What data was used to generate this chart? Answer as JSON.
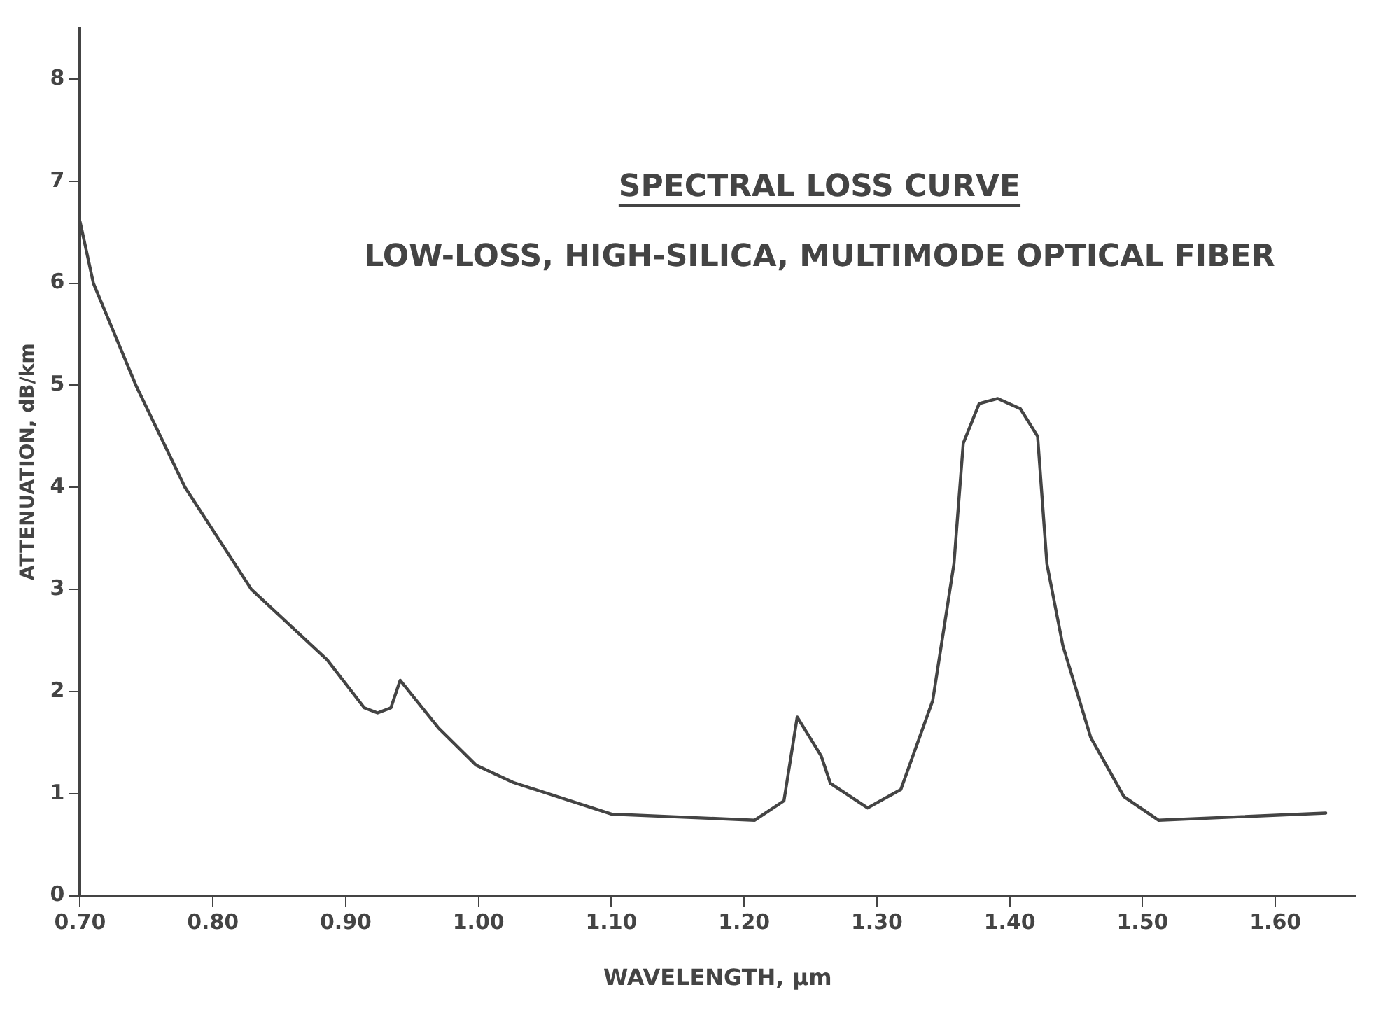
{
  "chart_data": {
    "type": "line",
    "title": "SPECTRAL LOSS CURVE",
    "subtitle": "LOW-LOSS, HIGH-SILICA, MULTIMODE OPTICAL FIBER",
    "xlabel": "WAVELENGTH, µm",
    "ylabel": "ATTENUATION, dB/km",
    "x": [
      0.7,
      0.71,
      0.742,
      0.779,
      0.829,
      0.886,
      0.914,
      0.924,
      0.934,
      0.941,
      0.97,
      0.998,
      1.026,
      1.1,
      1.208,
      1.23,
      1.24,
      1.258,
      1.265,
      1.293,
      1.318,
      1.342,
      1.358,
      1.365,
      1.377,
      1.391,
      1.408,
      1.421,
      1.428,
      1.44,
      1.461,
      1.486,
      1.512,
      1.638
    ],
    "series": [
      {
        "color": "#444444",
        "values": [
          6.6,
          6.0,
          5.0,
          4.0,
          3.0,
          2.31,
          1.84,
          1.79,
          1.84,
          2.11,
          1.64,
          1.28,
          1.11,
          0.8,
          0.74,
          0.93,
          1.75,
          1.37,
          1.1,
          0.86,
          1.04,
          1.91,
          3.25,
          4.43,
          4.82,
          4.87,
          4.77,
          4.5,
          3.25,
          2.45,
          1.55,
          0.97,
          0.74,
          0.81
        ]
      }
    ],
    "xlim": [
      0.7,
      1.66
    ],
    "ylim": [
      0,
      8.5
    ],
    "xticks": [
      {
        "value": 0.7,
        "label": "0.70"
      },
      {
        "value": 0.8,
        "label": "0.80"
      },
      {
        "value": 0.9,
        "label": "0.90"
      },
      {
        "value": 1.0,
        "label": "1.00"
      },
      {
        "value": 1.1,
        "label": "1.10"
      },
      {
        "value": 1.2,
        "label": "1.20"
      },
      {
        "value": 1.3,
        "label": "1.30"
      },
      {
        "value": 1.4,
        "label": "1.40"
      },
      {
        "value": 1.5,
        "label": "1.50"
      },
      {
        "value": 1.6,
        "label": "1.60"
      }
    ],
    "yticks": [
      0,
      1,
      2,
      3,
      4,
      5,
      6,
      7,
      8
    ],
    "grid": false,
    "legend": false,
    "marker": "none",
    "line_style": "solid"
  }
}
